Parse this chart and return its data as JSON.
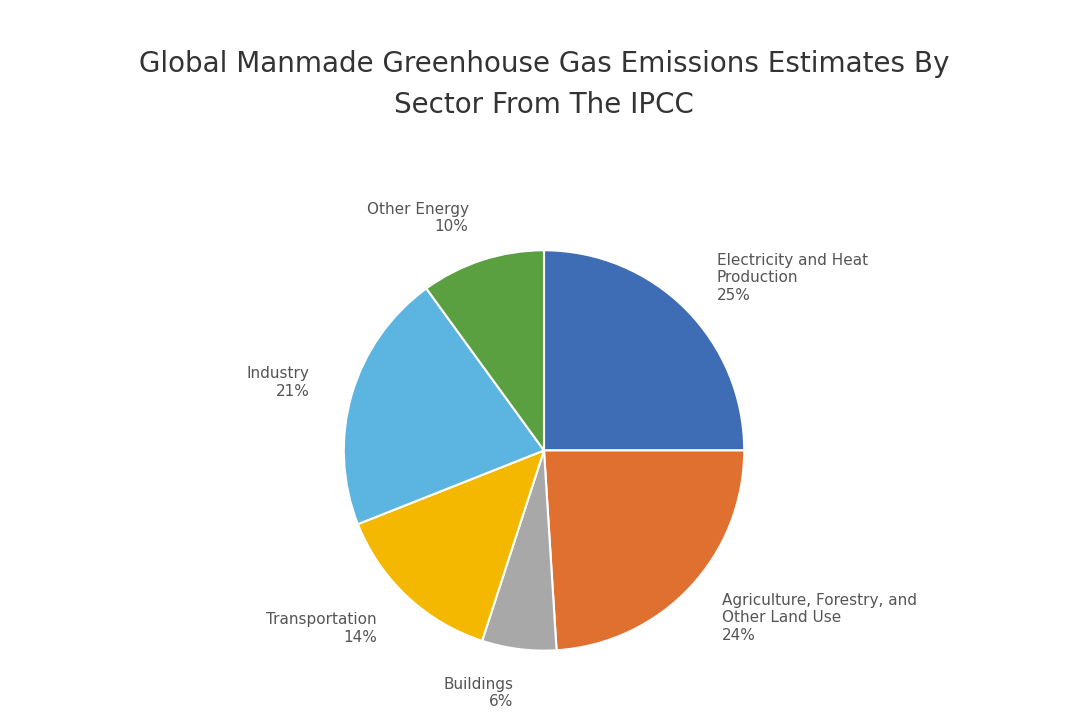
{
  "title": "Global Manmade Greenhouse Gas Emissions Estimates By\nSector From The IPCC",
  "labels": [
    "Electricity and Heat\nProduction\n25%",
    "Agriculture, Forestry, and\nOther Land Use\n24%",
    "Buildings\n6%",
    "Transportation\n14%",
    "Industry\n21%",
    "Other Energy\n10%"
  ],
  "values": [
    25,
    24,
    6,
    14,
    21,
    10
  ],
  "colors": [
    "#3E6DB5",
    "#E07030",
    "#A8A8A8",
    "#F5B800",
    "#5BB5E0",
    "#5AA040"
  ],
  "startangle": 90,
  "background_color": "#FFFFFF",
  "title_fontsize": 20,
  "label_fontsize": 11
}
